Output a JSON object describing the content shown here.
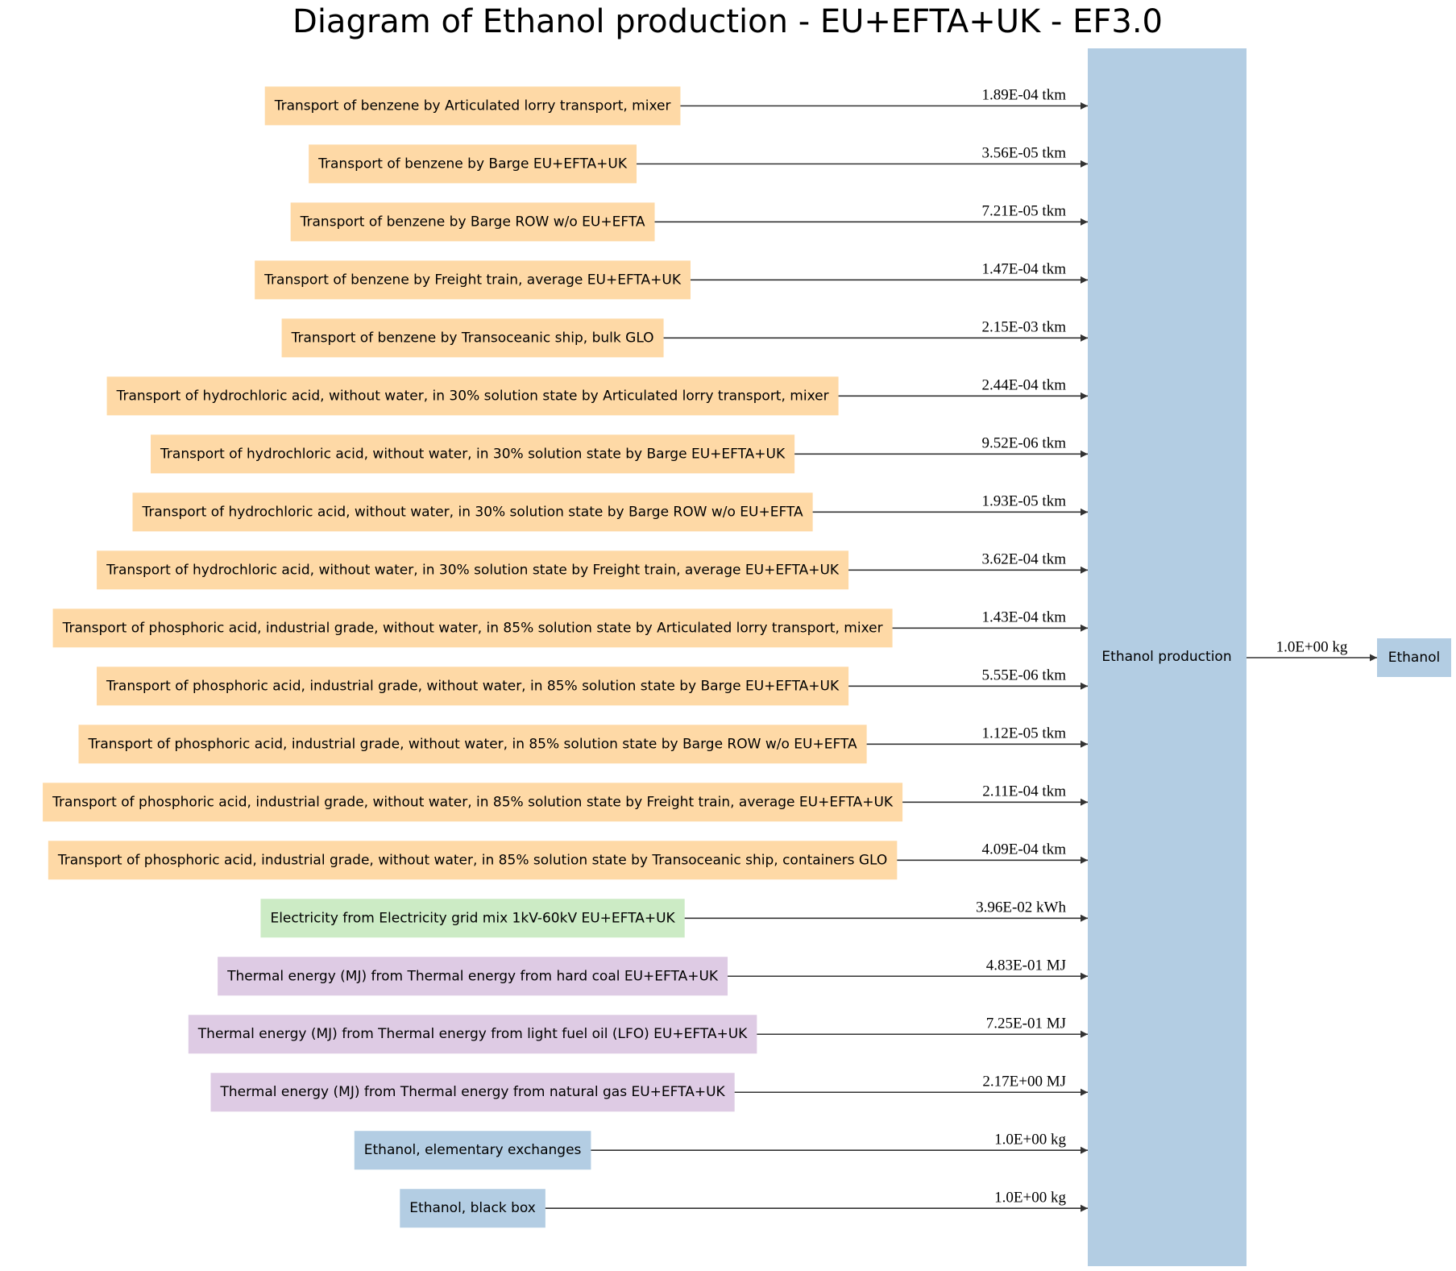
{
  "title": "Diagram of Ethanol production - EU+EFTA+UK - EF3.0",
  "process": {
    "label": "Ethanol production",
    "color": "#b3cde3"
  },
  "output": {
    "label": "Ethanol",
    "flow": "1.0E+00 kg",
    "color": "#b3cde3"
  },
  "inputs": [
    {
      "label": "Transport of benzene by Articulated lorry transport, mixer",
      "flow": "1.89E-04 tkm",
      "color": "#fed9a6"
    },
    {
      "label": "Transport of benzene by Barge EU+EFTA+UK",
      "flow": "3.56E-05 tkm",
      "color": "#fed9a6"
    },
    {
      "label": "Transport of benzene by Barge ROW w/o EU+EFTA",
      "flow": "7.21E-05 tkm",
      "color": "#fed9a6"
    },
    {
      "label": "Transport of benzene by Freight train, average EU+EFTA+UK",
      "flow": "1.47E-04 tkm",
      "color": "#fed9a6"
    },
    {
      "label": "Transport of benzene by Transoceanic ship, bulk GLO",
      "flow": "2.15E-03 tkm",
      "color": "#fed9a6"
    },
    {
      "label": "Transport of hydrochloric acid, without water, in 30% solution state by Articulated lorry transport, mixer",
      "flow": "2.44E-04 tkm",
      "color": "#fed9a6"
    },
    {
      "label": "Transport of hydrochloric acid, without water, in 30% solution state by Barge EU+EFTA+UK",
      "flow": "9.52E-06 tkm",
      "color": "#fed9a6"
    },
    {
      "label": "Transport of hydrochloric acid, without water, in 30% solution state by Barge ROW w/o EU+EFTA",
      "flow": "1.93E-05 tkm",
      "color": "#fed9a6"
    },
    {
      "label": "Transport of hydrochloric acid, without water, in 30% solution state by Freight train, average EU+EFTA+UK",
      "flow": "3.62E-04 tkm",
      "color": "#fed9a6"
    },
    {
      "label": "Transport of phosphoric acid, industrial grade, without water, in 85% solution state by Articulated lorry transport, mixer",
      "flow": "1.43E-04 tkm",
      "color": "#fed9a6"
    },
    {
      "label": "Transport of phosphoric acid, industrial grade, without water, in 85% solution state by Barge EU+EFTA+UK",
      "flow": "5.55E-06 tkm",
      "color": "#fed9a6"
    },
    {
      "label": "Transport of phosphoric acid, industrial grade, without water, in 85% solution state by Barge ROW w/o EU+EFTA",
      "flow": "1.12E-05 tkm",
      "color": "#fed9a6"
    },
    {
      "label": "Transport of phosphoric acid, industrial grade, without water, in 85% solution state by Freight train, average EU+EFTA+UK",
      "flow": "2.11E-04 tkm",
      "color": "#fed9a6"
    },
    {
      "label": "Transport of phosphoric acid, industrial grade, without water, in 85% solution state by Transoceanic ship, containers GLO",
      "flow": "4.09E-04 tkm",
      "color": "#fed9a6"
    },
    {
      "label": "Electricity from Electricity grid mix 1kV-60kV EU+EFTA+UK",
      "flow": "3.96E-02 kWh",
      "color": "#ccebc5"
    },
    {
      "label": "Thermal energy (MJ) from Thermal energy from hard coal EU+EFTA+UK",
      "flow": "4.83E-01 MJ",
      "color": "#decbe4"
    },
    {
      "label": "Thermal energy (MJ) from Thermal energy from light fuel oil (LFO) EU+EFTA+UK",
      "flow": "7.25E-01 MJ",
      "color": "#decbe4"
    },
    {
      "label": "Thermal energy (MJ) from Thermal energy from natural gas EU+EFTA+UK",
      "flow": "2.17E+00 MJ",
      "color": "#decbe4"
    },
    {
      "label": "Ethanol, elementary exchanges",
      "flow": "1.0E+00 kg",
      "color": "#b3cde3"
    },
    {
      "label": "Ethanol, black box",
      "flow": "1.0E+00 kg",
      "color": "#b3cde3"
    }
  ]
}
